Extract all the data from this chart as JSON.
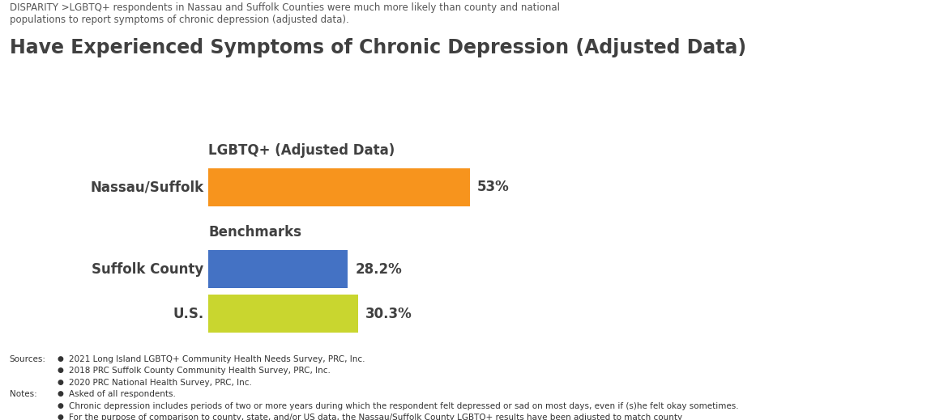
{
  "title": "Have Experienced Symptoms of Chronic Depression (Adjusted Data)",
  "disparity_text": "DISPARITY >LGBTQ+ respondents in Nassau and Suffolk Counties were much more likely than county and national\npopulations to report symptoms of chronic depression (adjusted data).",
  "group_label_1": "LGBTQ+ (Adjusted Data)",
  "group_label_2": "Benchmarks",
  "categories": [
    "Nassau/Suffolk",
    "Suffolk County",
    "U.S."
  ],
  "values": [
    53.0,
    28.2,
    30.3
  ],
  "labels": [
    "53%",
    "28.2%",
    "30.3%"
  ],
  "colors": [
    "#F7941D",
    "#4472C4",
    "#C9D62F"
  ],
  "bar_height": 0.55,
  "xlim": [
    0,
    100
  ],
  "background_color": "#FFFFFF",
  "sources_label": "Sources:",
  "notes_label": "Notes:",
  "sources": [
    "2021 Long Island LGBTQ+ Community Health Needs Survey, PRC, Inc.",
    "2018 PRC Suffolk County Community Health Survey, PRC, Inc.",
    "2020 PRC National Health Survey, PRC, Inc."
  ],
  "notes": [
    "Asked of all respondents.",
    "Chronic depression includes periods of two or more years during which the respondent felt depressed or sad on most days, even if (s)he felt okay sometimes.",
    "For the purpose of comparison to county, state, and/or US data, the Nassau/Suffolk County LGBTQ+ results have been adjusted to match county\ndemographics for sex, age, race, and ethnicity."
  ],
  "title_fontsize": 17,
  "category_fontsize": 12,
  "label_fontsize": 12,
  "group_label_fontsize": 12,
  "disparity_fontsize": 8.5,
  "footer_fontsize": 7.5
}
